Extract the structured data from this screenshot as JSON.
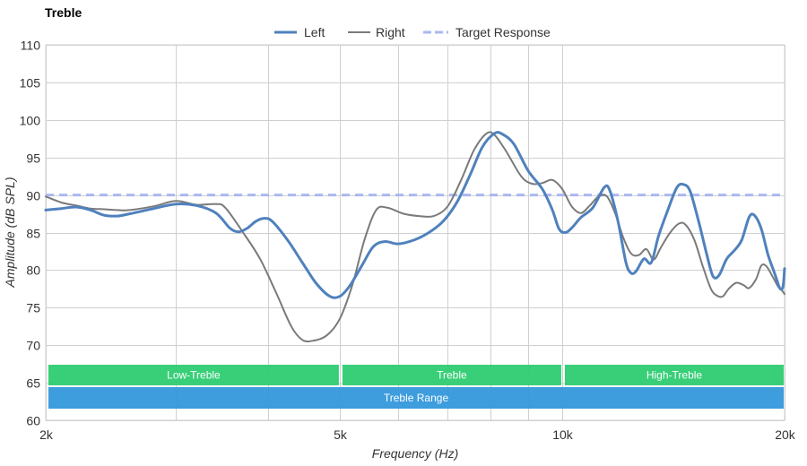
{
  "chart_data": {
    "type": "line",
    "title": "Treble",
    "xlabel": "Frequency (Hz)",
    "ylabel": "Amplitude (dB SPL)",
    "x_scale": "log",
    "xlim": [
      2000,
      20000
    ],
    "ylim": [
      60,
      110
    ],
    "x_ticks": [
      {
        "value": 2000,
        "label": "2k"
      },
      {
        "value": 5000,
        "label": "5k"
      },
      {
        "value": 10000,
        "label": "10k"
      },
      {
        "value": 20000,
        "label": "20k"
      }
    ],
    "x_minor_gridlines": [
      3000,
      4000,
      6000,
      7000,
      8000,
      9000
    ],
    "y_ticks": [
      60,
      65,
      70,
      75,
      80,
      85,
      90,
      95,
      100,
      105,
      110
    ],
    "grid": true,
    "legend_position": "top-center",
    "colors": {
      "left": "#4f81bd",
      "right": "#7a7a7a",
      "target": "#aab8f0",
      "band_green": "#2ecc71",
      "band_blue": "#3498db",
      "grid": "#d0d0d0"
    },
    "series": [
      {
        "name": "Left",
        "style": "solid",
        "points": [
          [
            2000,
            88.0
          ],
          [
            2100,
            88.2
          ],
          [
            2200,
            88.4
          ],
          [
            2300,
            88.0
          ],
          [
            2400,
            87.3
          ],
          [
            2500,
            87.2
          ],
          [
            2600,
            87.5
          ],
          [
            2800,
            88.2
          ],
          [
            3000,
            88.8
          ],
          [
            3200,
            88.6
          ],
          [
            3400,
            87.6
          ],
          [
            3550,
            85.6
          ],
          [
            3650,
            85.1
          ],
          [
            3750,
            85.6
          ],
          [
            3850,
            86.5
          ],
          [
            3950,
            86.9
          ],
          [
            4050,
            86.5
          ],
          [
            4250,
            84.0
          ],
          [
            4450,
            81.0
          ],
          [
            4650,
            78.2
          ],
          [
            4850,
            76.5
          ],
          [
            5000,
            76.5
          ],
          [
            5150,
            77.8
          ],
          [
            5350,
            80.5
          ],
          [
            5550,
            83.1
          ],
          [
            5750,
            83.8
          ],
          [
            6000,
            83.5
          ],
          [
            6300,
            84.0
          ],
          [
            6600,
            85.0
          ],
          [
            6900,
            86.5
          ],
          [
            7200,
            89.0
          ],
          [
            7500,
            92.6
          ],
          [
            7800,
            96.4
          ],
          [
            8100,
            98.2
          ],
          [
            8300,
            98.1
          ],
          [
            8600,
            96.8
          ],
          [
            9000,
            93.2
          ],
          [
            9400,
            90.8
          ],
          [
            9700,
            88.0
          ],
          [
            9900,
            85.5
          ],
          [
            10100,
            85.0
          ],
          [
            10300,
            85.6
          ],
          [
            10600,
            87.0
          ],
          [
            11000,
            88.3
          ],
          [
            11400,
            91.0
          ],
          [
            11600,
            90.6
          ],
          [
            11900,
            86.5
          ],
          [
            12200,
            81.0
          ],
          [
            12400,
            79.6
          ],
          [
            12600,
            79.9
          ],
          [
            12900,
            81.5
          ],
          [
            13200,
            81.0
          ],
          [
            13500,
            84.5
          ],
          [
            13900,
            88.0
          ],
          [
            14300,
            91.0
          ],
          [
            14600,
            91.4
          ],
          [
            14900,
            90.5
          ],
          [
            15300,
            86.5
          ],
          [
            15700,
            82.0
          ],
          [
            16000,
            79.2
          ],
          [
            16300,
            79.3
          ],
          [
            16700,
            81.5
          ],
          [
            17100,
            82.6
          ],
          [
            17500,
            84.0
          ],
          [
            17900,
            87.0
          ],
          [
            18200,
            87.3
          ],
          [
            18600,
            85.5
          ],
          [
            19000,
            82.0
          ],
          [
            19400,
            79.5
          ],
          [
            19700,
            77.6
          ],
          [
            19900,
            77.8
          ],
          [
            20000,
            80.2
          ]
        ]
      },
      {
        "name": "Right",
        "style": "solid",
        "points": [
          [
            2000,
            89.8
          ],
          [
            2100,
            89.0
          ],
          [
            2200,
            88.6
          ],
          [
            2300,
            88.2
          ],
          [
            2400,
            88.1
          ],
          [
            2500,
            88.0
          ],
          [
            2600,
            88.0
          ],
          [
            2800,
            88.5
          ],
          [
            3000,
            89.2
          ],
          [
            3200,
            88.7
          ],
          [
            3400,
            88.8
          ],
          [
            3500,
            88.3
          ],
          [
            3700,
            85.0
          ],
          [
            3900,
            81.5
          ],
          [
            4100,
            77.0
          ],
          [
            4300,
            72.5
          ],
          [
            4450,
            70.7
          ],
          [
            4600,
            70.6
          ],
          [
            4800,
            71.3
          ],
          [
            5000,
            73.5
          ],
          [
            5200,
            78.0
          ],
          [
            5400,
            84.0
          ],
          [
            5600,
            88.0
          ],
          [
            5800,
            88.3
          ],
          [
            6100,
            87.5
          ],
          [
            6400,
            87.2
          ],
          [
            6700,
            87.2
          ],
          [
            7000,
            88.5
          ],
          [
            7300,
            92.0
          ],
          [
            7600,
            96.0
          ],
          [
            7900,
            98.2
          ],
          [
            8100,
            98.0
          ],
          [
            8400,
            95.8
          ],
          [
            8800,
            92.5
          ],
          [
            9100,
            91.5
          ],
          [
            9400,
            91.6
          ],
          [
            9700,
            92.0
          ],
          [
            10000,
            90.8
          ],
          [
            10300,
            88.5
          ],
          [
            10600,
            87.6
          ],
          [
            10900,
            88.6
          ],
          [
            11200,
            89.8
          ],
          [
            11500,
            89.8
          ],
          [
            11800,
            87.5
          ],
          [
            12100,
            84.3
          ],
          [
            12400,
            82.2
          ],
          [
            12700,
            82.0
          ],
          [
            13000,
            82.8
          ],
          [
            13300,
            81.4
          ],
          [
            13600,
            83.0
          ],
          [
            14000,
            85.0
          ],
          [
            14400,
            86.2
          ],
          [
            14700,
            86.0
          ],
          [
            15100,
            84.0
          ],
          [
            15500,
            80.5
          ],
          [
            15900,
            77.5
          ],
          [
            16200,
            76.6
          ],
          [
            16500,
            76.5
          ],
          [
            16800,
            77.5
          ],
          [
            17200,
            78.3
          ],
          [
            17600,
            78.0
          ],
          [
            17900,
            77.6
          ],
          [
            18300,
            78.8
          ],
          [
            18600,
            80.6
          ],
          [
            18900,
            80.5
          ],
          [
            19300,
            79.0
          ],
          [
            19600,
            77.8
          ],
          [
            19800,
            77.4
          ],
          [
            20000,
            76.8
          ]
        ]
      },
      {
        "name": "Target Response",
        "style": "dashed",
        "points": [
          [
            2000,
            90.0
          ],
          [
            20000,
            90.0
          ]
        ]
      }
    ],
    "bands": [
      {
        "label": "Low-Treble",
        "x_start": 2000,
        "x_end": 5000,
        "row": 1,
        "color": "#2ecc71"
      },
      {
        "label": "Treble",
        "x_start": 5000,
        "x_end": 10000,
        "row": 1,
        "color": "#2ecc71"
      },
      {
        "label": "High-Treble",
        "x_start": 10000,
        "x_end": 20000,
        "row": 1,
        "color": "#2ecc71"
      },
      {
        "label": "Treble Range",
        "x_start": 2000,
        "x_end": 20000,
        "row": 2,
        "color": "#3498db"
      }
    ]
  }
}
